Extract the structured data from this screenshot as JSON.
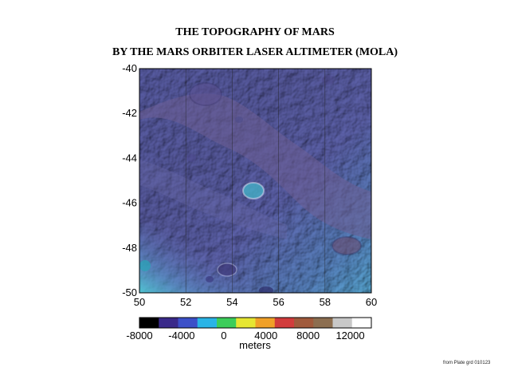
{
  "title": {
    "line1": "THE TOPOGRAPHY OF MARS",
    "line2": "BY THE MARS ORBITER LASER ALTIMETER (MOLA)"
  },
  "map": {
    "longitude_ticks": [
      "50",
      "52",
      "54",
      "56",
      "58",
      "60"
    ],
    "latitude_ticks": [
      "-40",
      "-42",
      "-44",
      "-46",
      "-48",
      "-50"
    ],
    "lon_range": [
      50,
      60
    ],
    "lat_range": [
      -50,
      -40
    ],
    "gridlines": true
  },
  "colorbar": {
    "ticks": [
      "-8000",
      "-4000",
      "0",
      "4000",
      "8000",
      "12000"
    ],
    "label": "meters",
    "range": [
      -8000,
      14000
    ],
    "colors": [
      "#000000",
      "#3a2a8a",
      "#3c50c8",
      "#2ab4e6",
      "#3ccd5a",
      "#e6e632",
      "#f0a028",
      "#d23c3c",
      "#a05a3c",
      "#8c6e50",
      "#c8c8c8",
      "#ffffff"
    ]
  },
  "footnote": "from Plate grd 010123"
}
